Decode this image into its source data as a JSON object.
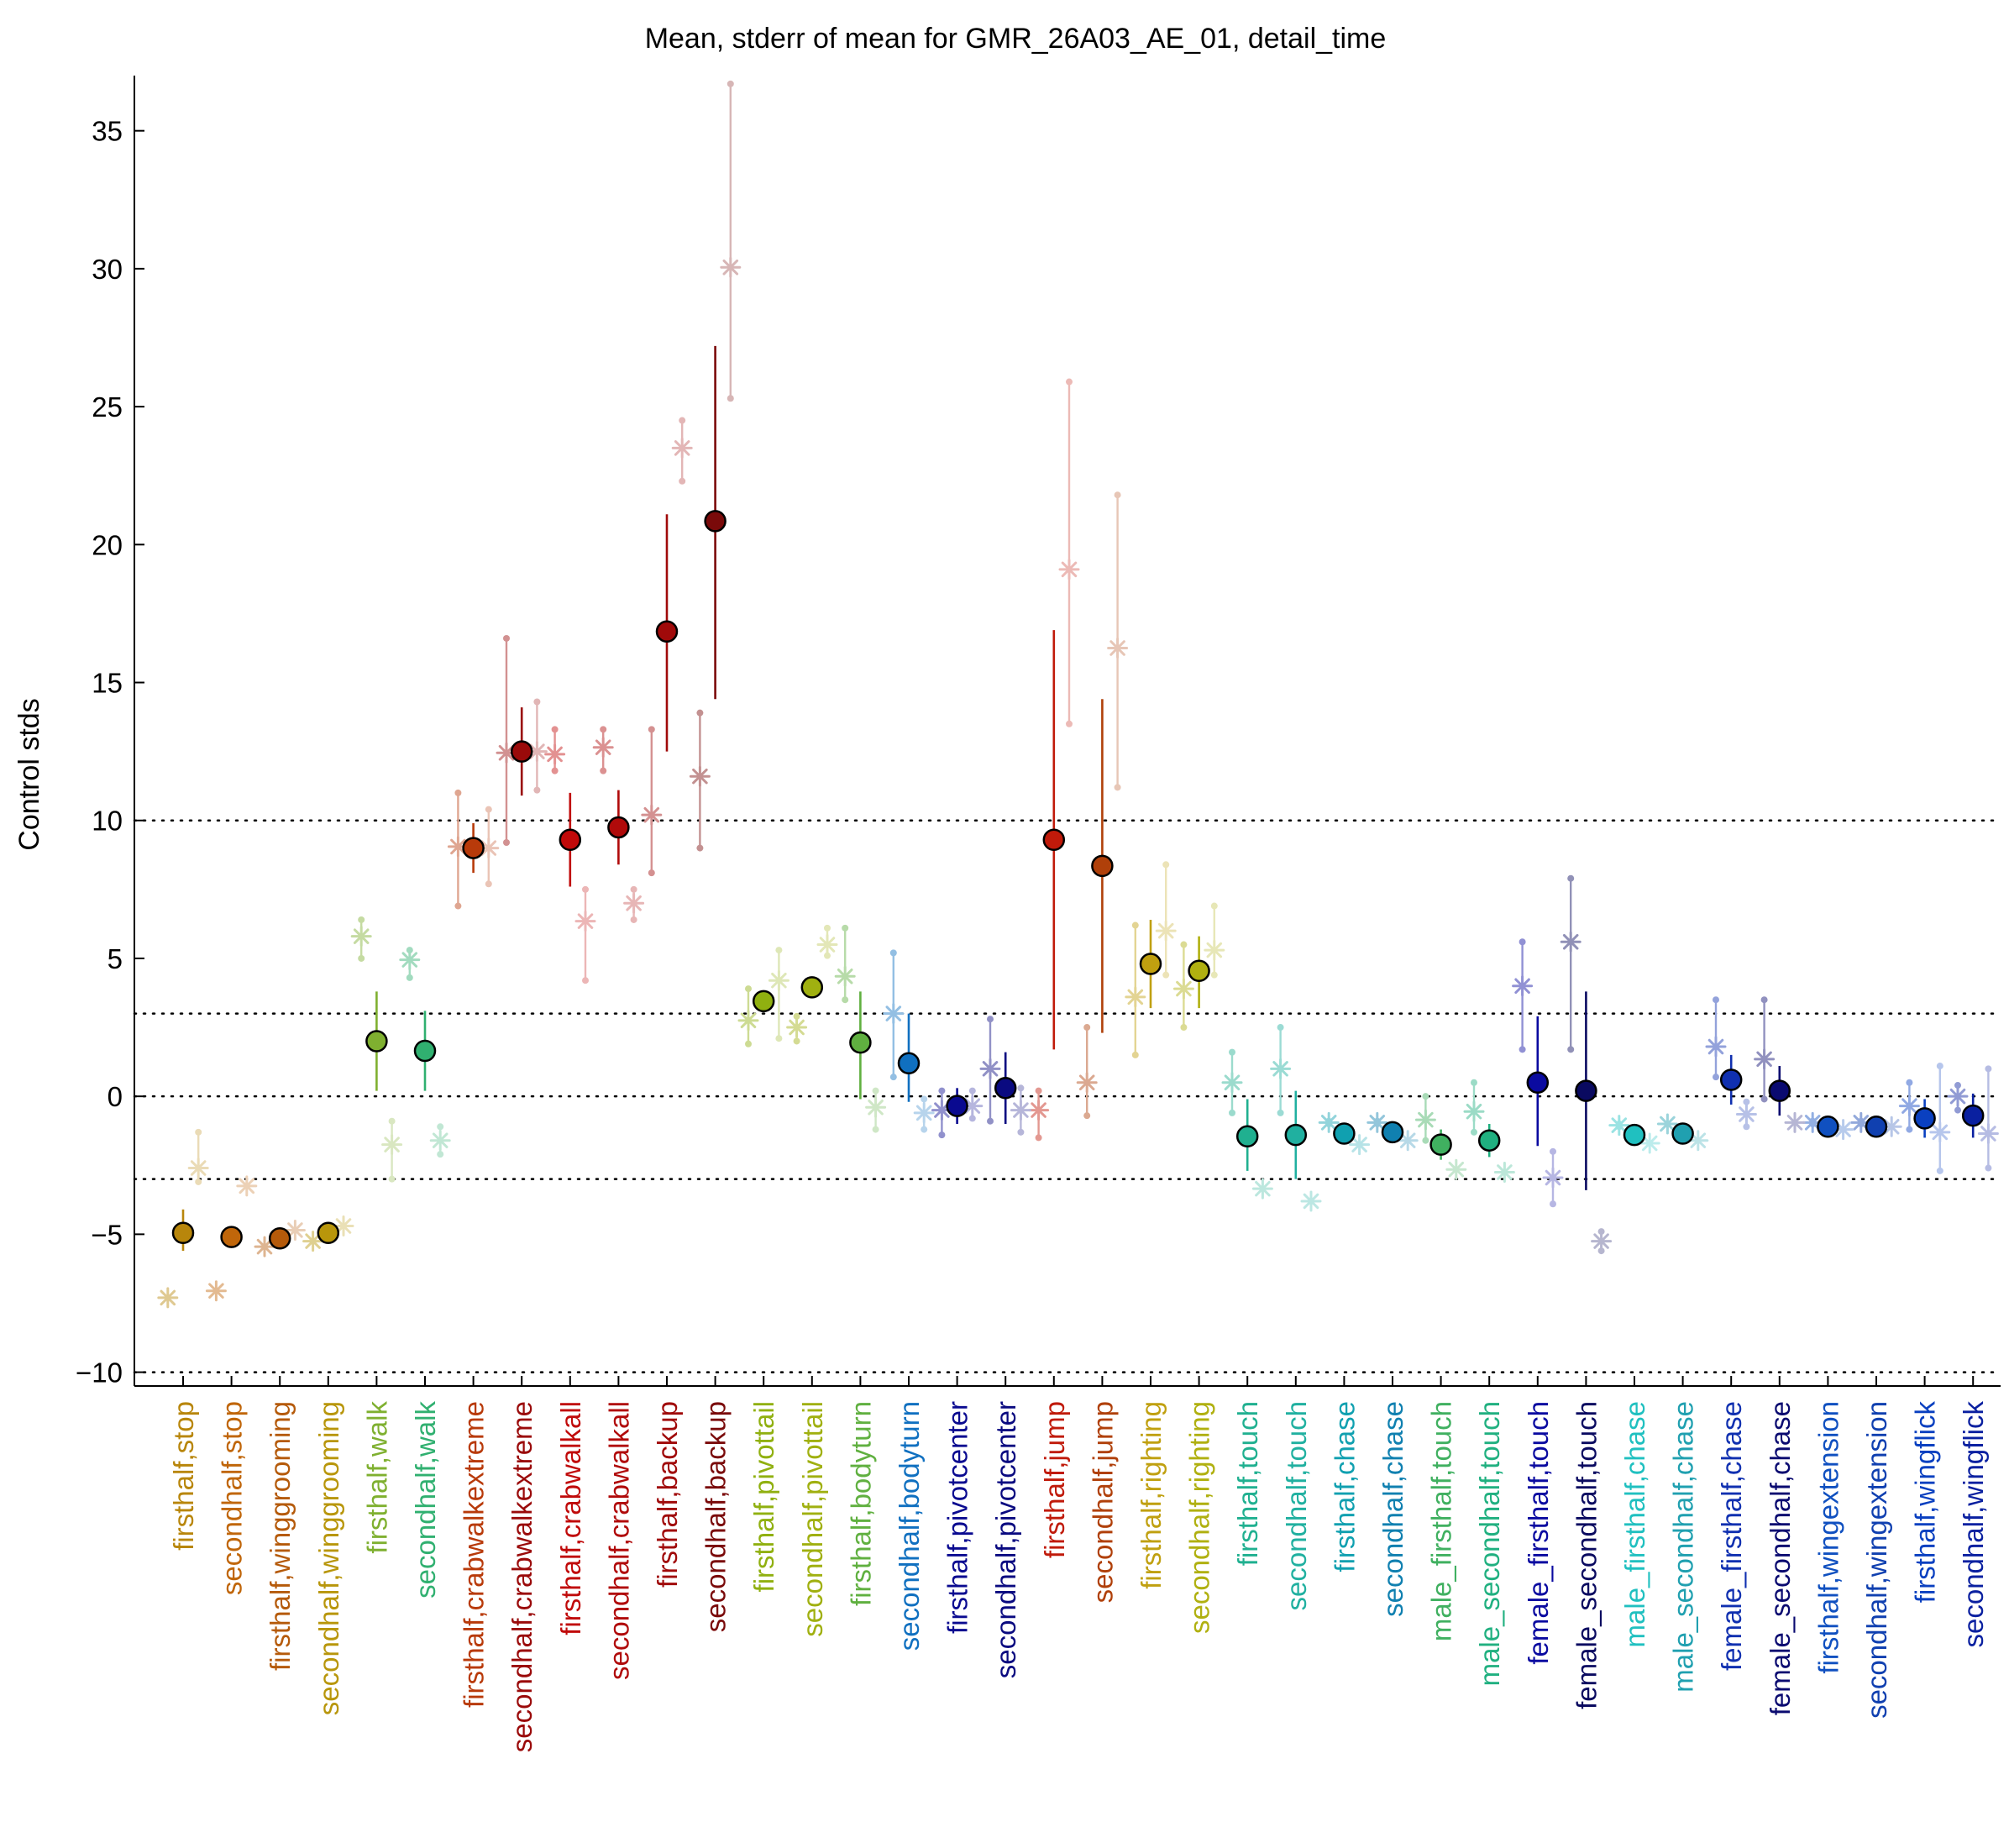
{
  "chart_data": {
    "type": "scatter",
    "title": "Mean, stderr of mean for GMR_26A03_AE_01, detail_time",
    "xlabel": "",
    "ylabel": "Control stds",
    "ylim": [
      -10.5,
      37
    ],
    "yticks": [
      -10,
      -5,
      0,
      5,
      10,
      15,
      20,
      25,
      30,
      35
    ],
    "ytick_labels": [
      "−10",
      "−5",
      "0",
      "5",
      "10",
      "15",
      "20",
      "25",
      "30",
      "35"
    ],
    "reference_lines": [
      -10,
      -3,
      0,
      3,
      10
    ],
    "grid": false,
    "categories": [
      "firsthalf,stop",
      "secondhalf,stop",
      "firsthalf,winggrooming",
      "secondhalf,winggrooming",
      "firsthalf,walk",
      "secondhalf,walk",
      "firsthalf,crabwalkextreme",
      "secondhalf,crabwalkextreme",
      "firsthalf,crabwalkall",
      "secondhalf,crabwalkall",
      "firsthalf,backup",
      "secondhalf,backup",
      "firsthalf,pivottail",
      "secondhalf,pivottail",
      "firsthalf,bodyturn",
      "secondhalf,bodyturn",
      "firsthalf,pivotcenter",
      "secondhalf,pivotcenter",
      "firsthalf,jump",
      "secondhalf,jump",
      "firsthalf,righting",
      "secondhalf,righting",
      "firsthalf,touch",
      "secondhalf,touch",
      "firsthalf,chase",
      "secondhalf,chase",
      "male_firsthalf,touch",
      "male_secondhalf,touch",
      "female_firsthalf,touch",
      "female_secondhalf,touch",
      "male_firsthalf,chase",
      "male_secondhalf,chase",
      "female_firsthalf,chase",
      "female_secondhalf,chase",
      "firsthalf,wingextension",
      "secondhalf,wingextension",
      "firsthalf,wingflick",
      "secondhalf,wingflick"
    ],
    "category_colors": [
      "#b8860b",
      "#c0660a",
      "#b55a0a",
      "#b8960b",
      "#7fb030",
      "#30b070",
      "#b83a0a",
      "#9a0a0a",
      "#c00a0a",
      "#b00a0a",
      "#a00a0a",
      "#7a0a0a",
      "#90b010",
      "#a0b010",
      "#60b040",
      "#1070c0",
      "#0a0a90",
      "#0a0a80",
      "#c01a0a",
      "#b0400a",
      "#c0a010",
      "#b0b010",
      "#20b090",
      "#20b0a0",
      "#10a0b0",
      "#1080b0",
      "#40b060",
      "#20b080",
      "#0a0aa0",
      "#0a0a60",
      "#20c0c0",
      "#20a0b0",
      "#1030b0",
      "#0a0a70",
      "#1050c0",
      "#1040b0",
      "#0a40c0",
      "#0a20a0"
    ],
    "series": [
      {
        "name": "",
        "marker": "circle",
        "values": [
          -4.95,
          -5.1,
          -5.15,
          -4.95,
          2.0,
          1.65,
          9.0,
          12.5,
          9.3,
          9.75,
          16.85,
          20.85,
          3.45,
          3.95,
          1.95,
          1.2,
          -0.35,
          0.3,
          9.3,
          8.35,
          4.8,
          4.55,
          -1.45,
          -1.4,
          -1.35,
          -1.3,
          -1.75,
          -1.6,
          0.5,
          0.2,
          -1.4,
          -1.35,
          0.6,
          0.2,
          -1.1,
          -1.1,
          -0.8,
          -0.7
        ],
        "err_low": [
          -5.6,
          -5.4,
          -5.4,
          -5.2,
          0.2,
          0.2,
          8.1,
          10.9,
          7.6,
          8.4,
          12.5,
          14.4,
          3.3,
          3.8,
          -0.1,
          -0.2,
          -1.0,
          -1.0,
          1.7,
          2.3,
          3.2,
          3.2,
          -2.7,
          -3.0,
          -1.4,
          -1.5,
          -2.3,
          -2.2,
          -1.8,
          -3.4,
          -1.5,
          -1.5,
          -0.3,
          -0.7,
          -1.2,
          -1.3,
          -1.5,
          -1.5
        ],
        "err_high": [
          -4.1,
          -4.8,
          -4.9,
          -4.7,
          3.8,
          3.1,
          9.9,
          14.1,
          11.0,
          11.1,
          21.1,
          27.2,
          3.6,
          4.1,
          3.8,
          3.0,
          0.3,
          1.6,
          16.9,
          14.4,
          6.4,
          5.8,
          -0.1,
          0.2,
          -1.2,
          -1.1,
          -1.2,
          -1.0,
          2.9,
          3.8,
          -1.3,
          -1.2,
          1.5,
          1.1,
          -1.0,
          -0.9,
          -0.1,
          0.1
        ]
      },
      {
        "name": "",
        "marker": "asterisk",
        "values": [
          -7.3,
          -7.05,
          -5.45,
          -5.25,
          5.8,
          4.95,
          9.05,
          12.45,
          12.4,
          12.65,
          10.2,
          11.6,
          2.75,
          2.5,
          4.35,
          3.0,
          -0.5,
          1.0,
          -0.5,
          0.5,
          3.6,
          3.9,
          0.5,
          1.0,
          -0.95,
          -0.95,
          -0.85,
          -0.55,
          4.0,
          5.6,
          -1.05,
          -1.0,
          1.8,
          1.35,
          -0.95,
          -0.95,
          -0.35,
          0.0
        ],
        "err_low": [
          -7.3,
          -7.05,
          -5.45,
          -5.25,
          5.0,
          4.3,
          6.9,
          9.2,
          11.8,
          11.8,
          8.1,
          9.0,
          1.9,
          2.0,
          3.5,
          0.7,
          -1.4,
          -0.9,
          -1.5,
          -0.7,
          1.5,
          2.5,
          -0.6,
          -0.6,
          -1.0,
          -1.0,
          -1.6,
          -1.3,
          1.7,
          1.7,
          -1.1,
          -1.0,
          0.7,
          -0.1,
          -1.0,
          -1.0,
          -1.2,
          -0.5
        ],
        "err_high": [
          -7.3,
          -7.05,
          -5.45,
          -5.25,
          6.4,
          5.3,
          11.0,
          16.6,
          13.3,
          13.3,
          13.3,
          13.9,
          3.9,
          2.9,
          6.1,
          5.2,
          0.2,
          2.8,
          0.2,
          2.5,
          6.2,
          5.5,
          1.6,
          2.5,
          -0.9,
          -0.9,
          0.0,
          0.5,
          5.6,
          7.9,
          -1.0,
          -1.0,
          3.5,
          3.5,
          -0.9,
          -0.9,
          0.5,
          0.4
        ]
      },
      {
        "name": "",
        "marker": "asterisk",
        "values": [
          -2.6,
          -3.25,
          -4.85,
          -4.7,
          -1.75,
          -1.6,
          9.0,
          12.5,
          6.35,
          7.0,
          23.5,
          30.05,
          4.2,
          5.5,
          -0.4,
          -0.6,
          -0.35,
          -0.5,
          19.1,
          16.25,
          6.0,
          5.3,
          -3.35,
          -3.8,
          -1.75,
          -1.6,
          -2.65,
          -2.75,
          -2.95,
          -5.25,
          -1.7,
          -1.6,
          -0.65,
          -0.95,
          -1.2,
          -1.1,
          -1.3,
          -1.35
        ],
        "err_low": [
          -3.1,
          -3.25,
          -4.85,
          -4.7,
          -3.0,
          -2.1,
          7.7,
          11.1,
          4.2,
          6.4,
          22.3,
          25.3,
          2.1,
          5.1,
          -1.2,
          -1.2,
          -0.8,
          -1.3,
          13.5,
          11.2,
          4.4,
          4.4,
          -3.35,
          -3.8,
          -1.75,
          -1.6,
          -2.65,
          -2.75,
          -3.9,
          -5.6,
          -1.7,
          -1.6,
          -1.1,
          -0.95,
          -1.2,
          -1.1,
          -2.7,
          -2.6
        ],
        "err_high": [
          -1.3,
          -3.25,
          -4.85,
          -4.7,
          -0.9,
          -1.1,
          10.4,
          14.3,
          7.5,
          7.5,
          24.5,
          36.7,
          5.3,
          6.1,
          0.2,
          -0.1,
          0.2,
          0.3,
          25.9,
          21.8,
          8.4,
          6.9,
          -3.35,
          -3.8,
          -1.75,
          -1.6,
          -2.65,
          -2.75,
          -2.0,
          -4.9,
          -1.7,
          -1.6,
          -0.2,
          -0.95,
          -1.2,
          -1.1,
          1.1,
          1.0
        ]
      }
    ]
  }
}
